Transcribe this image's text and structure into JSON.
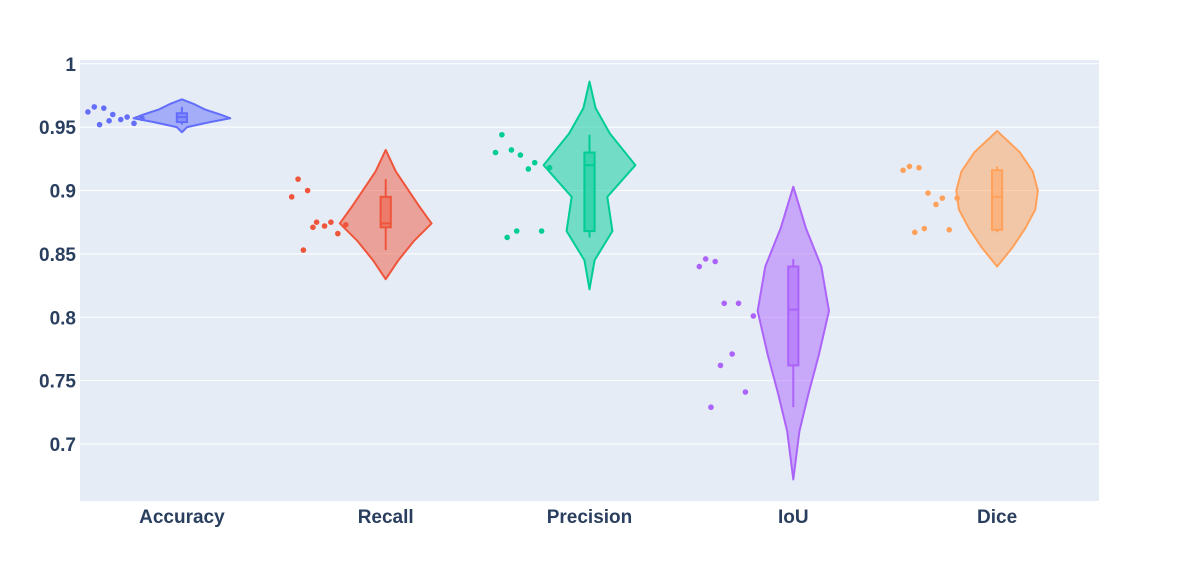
{
  "chart_data": {
    "type": "violin",
    "title": "",
    "xlabel": "",
    "ylabel": "",
    "categories": [
      "Accuracy",
      "Recall",
      "Precision",
      "IoU",
      "Dice"
    ],
    "ylim": [
      0.655,
      1.003
    ],
    "yticks": [
      0.7,
      0.75,
      0.8,
      0.85,
      0.9,
      0.95,
      1
    ],
    "ytick_labels": [
      "0.7",
      "0.75",
      "0.8",
      "0.85",
      "0.9",
      "0.95",
      "1"
    ],
    "grid": true,
    "legend": "none",
    "plot_background": "#e5ecf6",
    "series": [
      {
        "name": "Accuracy",
        "color": "#636efa",
        "points": [
          0.966,
          0.965,
          0.962,
          0.96,
          0.958,
          0.957,
          0.956,
          0.955,
          0.953,
          0.952
        ],
        "box": {
          "q1": 0.954,
          "median": 0.958,
          "q3": 0.961,
          "lower_fence": 0.952,
          "upper_fence": 0.966
        },
        "violin": {
          "min": 0.946,
          "max": 0.972,
          "profile": [
            [
              0.946,
              0.0
            ],
            [
              0.95,
              0.1
            ],
            [
              0.954,
              0.55
            ],
            [
              0.957,
              0.95
            ],
            [
              0.96,
              0.75
            ],
            [
              0.964,
              0.45
            ],
            [
              0.968,
              0.25
            ],
            [
              0.972,
              0.0
            ]
          ]
        }
      },
      {
        "name": "Recall",
        "color": "#ef553b",
        "points": [
          0.909,
          0.9,
          0.895,
          0.875,
          0.875,
          0.873,
          0.872,
          0.871,
          0.866,
          0.853
        ],
        "box": {
          "q1": 0.871,
          "median": 0.874,
          "q3": 0.895,
          "lower_fence": 0.853,
          "upper_fence": 0.909
        },
        "violin": {
          "min": 0.83,
          "max": 0.932,
          "profile": [
            [
              0.83,
              0.0
            ],
            [
              0.845,
              0.25
            ],
            [
              0.86,
              0.55
            ],
            [
              0.874,
              0.9
            ],
            [
              0.888,
              0.65
            ],
            [
              0.9,
              0.45
            ],
            [
              0.915,
              0.2
            ],
            [
              0.932,
              0.0
            ]
          ]
        }
      },
      {
        "name": "Precision",
        "color": "#00cc96",
        "points": [
          0.944,
          0.932,
          0.93,
          0.928,
          0.922,
          0.918,
          0.917,
          0.868,
          0.868,
          0.863
        ],
        "box": {
          "q1": 0.868,
          "median": 0.92,
          "q3": 0.93,
          "lower_fence": 0.863,
          "upper_fence": 0.944
        },
        "violin": {
          "min": 0.822,
          "max": 0.986,
          "profile": [
            [
              0.822,
              0.0
            ],
            [
              0.845,
              0.1
            ],
            [
              0.868,
              0.45
            ],
            [
              0.895,
              0.35
            ],
            [
              0.92,
              0.9
            ],
            [
              0.945,
              0.4
            ],
            [
              0.965,
              0.12
            ],
            [
              0.986,
              0.0
            ]
          ]
        }
      },
      {
        "name": "IoU",
        "color": "#ab63fa",
        "points": [
          0.846,
          0.844,
          0.84,
          0.811,
          0.811,
          0.801,
          0.771,
          0.762,
          0.741,
          0.729
        ],
        "box": {
          "q1": 0.762,
          "median": 0.806,
          "q3": 0.84,
          "lower_fence": 0.729,
          "upper_fence": 0.846
        },
        "violin": {
          "min": 0.672,
          "max": 0.903,
          "profile": [
            [
              0.672,
              0.0
            ],
            [
              0.71,
              0.12
            ],
            [
              0.74,
              0.3
            ],
            [
              0.77,
              0.5
            ],
            [
              0.805,
              0.7
            ],
            [
              0.84,
              0.55
            ],
            [
              0.87,
              0.25
            ],
            [
              0.903,
              0.0
            ]
          ]
        }
      },
      {
        "name": "Dice",
        "color": "#ffa15a",
        "points": [
          0.919,
          0.918,
          0.916,
          0.898,
          0.894,
          0.894,
          0.889,
          0.87,
          0.869,
          0.867
        ],
        "box": {
          "q1": 0.869,
          "median": 0.895,
          "q3": 0.916,
          "lower_fence": 0.867,
          "upper_fence": 0.919
        },
        "violin": {
          "min": 0.84,
          "max": 0.947,
          "profile": [
            [
              0.84,
              0.0
            ],
            [
              0.855,
              0.3
            ],
            [
              0.87,
              0.55
            ],
            [
              0.885,
              0.75
            ],
            [
              0.9,
              0.8
            ],
            [
              0.915,
              0.7
            ],
            [
              0.93,
              0.45
            ],
            [
              0.947,
              0.0
            ]
          ]
        }
      }
    ]
  }
}
